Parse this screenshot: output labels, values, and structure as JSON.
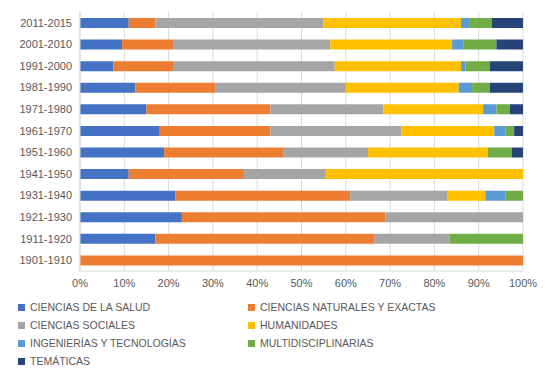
{
  "chart_data": {
    "type": "bar",
    "orientation": "horizontal",
    "stacked": true,
    "grid": true,
    "legend": "bottom",
    "categories": [
      "2011-2015",
      "2001-2010",
      "1991-2000",
      "1981-1990",
      "1971-1980",
      "1961-1970",
      "1951-1960",
      "1941-1950",
      "1931-1940",
      "1921-1930",
      "1911-1920",
      "1901-1910"
    ],
    "series": [
      {
        "name": "CIENCIAS DE LA SALUD",
        "color": "#4472c4",
        "values": [
          11,
          9.5,
          7.5,
          12.5,
          15,
          18,
          19,
          11,
          21.5,
          23,
          17,
          0
        ]
      },
      {
        "name": "CIENCIAS NATURALES Y EXACTAS",
        "color": "#ed7d31",
        "values": [
          6,
          11.5,
          13.5,
          18,
          28,
          25,
          27,
          26,
          39.5,
          46,
          49.5,
          100
        ]
      },
      {
        "name": "CIENCIAS SOCIALES",
        "color": "#a5a5a5",
        "values": [
          38,
          35.5,
          36.5,
          29.5,
          25.5,
          29.5,
          19,
          18.5,
          22,
          31,
          17,
          0
        ]
      },
      {
        "name": "HUMANIDADES",
        "color": "#ffc000",
        "values": [
          31,
          27.5,
          28.5,
          25.5,
          22.5,
          21,
          27,
          44.5,
          8.5,
          0,
          0,
          0
        ]
      },
      {
        "name": "INGENIERÍAS Y TECNOLOGÍAS",
        "color": "#5b9bd5",
        "values": [
          2,
          2.5,
          1,
          3,
          3,
          2.5,
          0,
          0,
          4.5,
          0,
          0,
          0
        ]
      },
      {
        "name": "MULTIDISCIPLINARIAS",
        "color": "#70ad47",
        "values": [
          5,
          7.5,
          5.5,
          4,
          3,
          2,
          5.5,
          0,
          4,
          0,
          16.5,
          0
        ]
      },
      {
        "name": "TEMÁTICAS",
        "color": "#264478",
        "values": [
          7,
          6,
          7.5,
          7.5,
          3,
          2,
          2.5,
          0,
          0,
          0,
          0,
          0
        ]
      }
    ],
    "xlim": [
      0,
      100
    ],
    "xticks": [
      {
        "value": 0,
        "label": "0%"
      },
      {
        "value": 10,
        "label": "10%"
      },
      {
        "value": 20,
        "label": "20%"
      },
      {
        "value": 30,
        "label": "30%"
      },
      {
        "value": 40,
        "label": "40%"
      },
      {
        "value": 50,
        "label": "50%"
      },
      {
        "value": 60,
        "label": "60%"
      },
      {
        "value": 70,
        "label": "70%"
      },
      {
        "value": 80,
        "label": "80%"
      },
      {
        "value": 90,
        "label": "90%"
      },
      {
        "value": 100,
        "label": "100%"
      }
    ]
  }
}
